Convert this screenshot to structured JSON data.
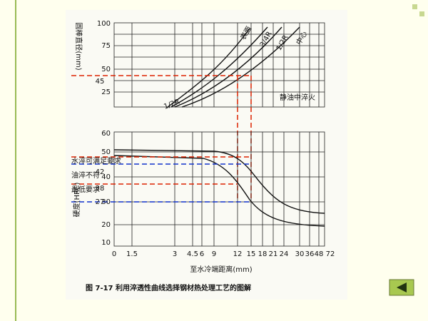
{
  "figure": {
    "top_chart": {
      "y_axis_label": "圆棒直径(mm)",
      "y_tick_labels": [
        "100",
        "75",
        "50",
        "25"
      ],
      "marked_value_label": "45",
      "curve_labels": [
        "表面",
        "3/4R",
        "1/2R",
        "中心",
        "1/2R"
      ],
      "condition": "静油中淬火"
    },
    "bottom_chart": {
      "y_axis_label": "硬度(HRC)",
      "y_tick_labels": [
        "60",
        "50",
        "40",
        "30",
        "20",
        "10"
      ],
      "x_tick_labels": [
        "0",
        "1.5",
        "3",
        "4.5",
        "6",
        "9",
        "12",
        "15",
        "18",
        "21",
        "24",
        "30",
        "36",
        "48",
        "72"
      ],
      "x_axis_label": "至水冷端距离(mm)",
      "annotations": [
        "水淬可满足要求",
        "油淬不符",
        "最低要求"
      ],
      "marked_value_labels": [
        "42",
        "38",
        "27"
      ]
    },
    "caption": "图 7-17   利用淬透性曲线选择钢材热处理工艺的图解"
  }
}
